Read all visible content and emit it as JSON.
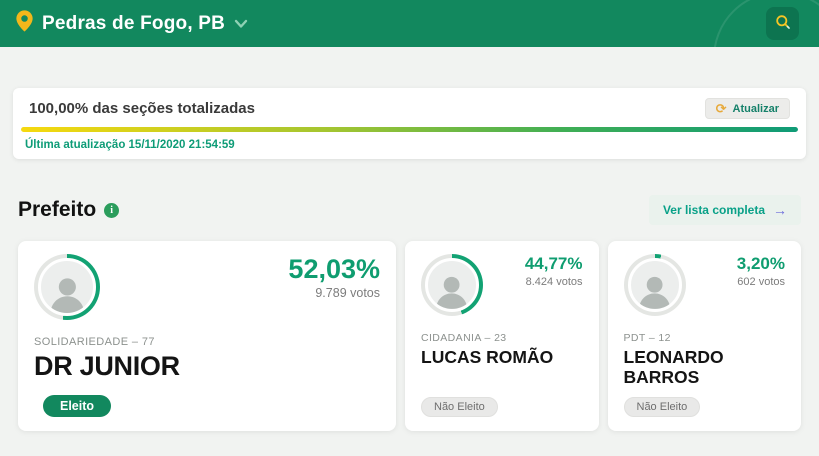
{
  "header": {
    "location": "Pedras de Fogo, PB"
  },
  "totalization": {
    "title": "100,00% das seções totalizadas",
    "refresh_label": "Atualizar",
    "last_update": "Última atualização 15/11/2020 21:54:59",
    "progress_percent": 100
  },
  "section": {
    "title": "Prefeito",
    "view_full_list": "Ver lista completa"
  },
  "candidates": [
    {
      "name": "DR JUNIOR",
      "party": "SOLIDARIEDADE – 77",
      "percent": "52,03%",
      "votes": "9.789 votos",
      "status": "Eleito",
      "pct": 52.03
    },
    {
      "name": "LUCAS ROMÃO",
      "party": "CIDADANIA – 23",
      "percent": "44,77%",
      "votes": "8.424 votos",
      "status": "Não Eleito",
      "pct": 44.77
    },
    {
      "name": "LEONARDO BARROS",
      "party": "PDT – 12",
      "percent": "3,20%",
      "votes": "602 votos",
      "status": "Não Eleito",
      "pct": 3.2
    }
  ],
  "icons": {
    "refresh": "⟳",
    "arrow_right": "→",
    "info": "i"
  },
  "colors": {
    "header_green": "#12885E",
    "percent_green": "#0F9D70",
    "ring_green": "#12A273",
    "ring_track": "#E4E6E3",
    "bar_yellow": "#F6D90F",
    "bar_green": "#0F9B77",
    "pin_yellow": "#F2B71B",
    "arrow_blue": "#6B6BDB"
  }
}
